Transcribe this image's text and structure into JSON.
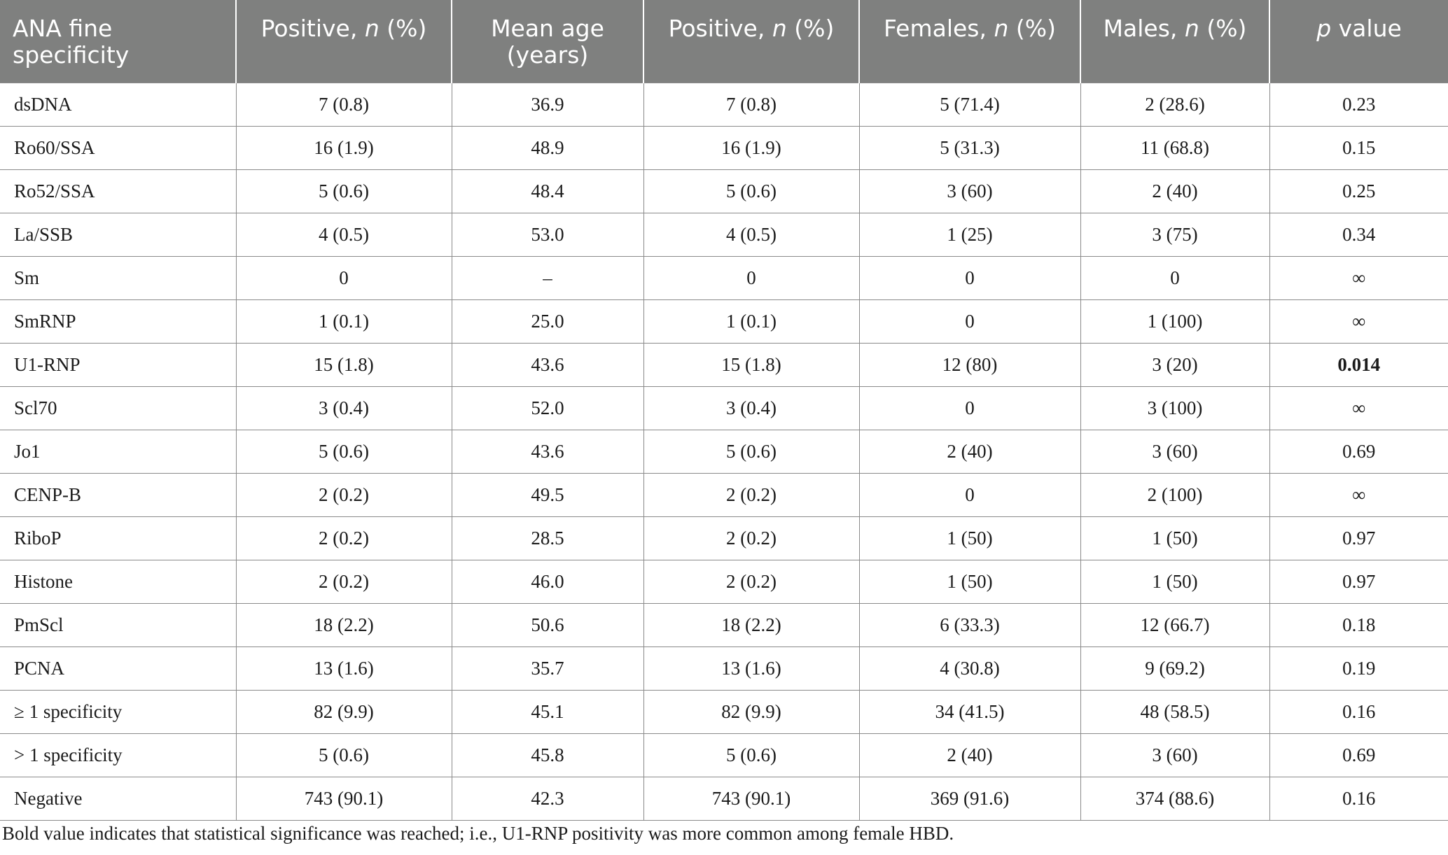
{
  "table": {
    "headers": [
      {
        "pre": "ANA fine specificity",
        "it": "",
        "post": ""
      },
      {
        "pre": "Positive, ",
        "it": "n",
        "post": " (%)"
      },
      {
        "pre": "Mean age (years)",
        "it": "",
        "post": ""
      },
      {
        "pre": "Positive, ",
        "it": "n",
        "post": " (%)"
      },
      {
        "pre": "Females, ",
        "it": "n",
        "post": " (%)"
      },
      {
        "pre": "Males, ",
        "it": "n",
        "post": " (%)"
      },
      {
        "pre": "",
        "it": "p",
        "post": " value"
      }
    ],
    "rows": [
      {
        "spec": "dsDNA",
        "pos1": "7 (0.8)",
        "age": "36.9",
        "pos2": "7 (0.8)",
        "fem": "5 (71.4)",
        "male": "2 (28.6)",
        "p": "0.23",
        "bold": false
      },
      {
        "spec": "Ro60/SSA",
        "pos1": "16 (1.9)",
        "age": "48.9",
        "pos2": "16 (1.9)",
        "fem": "5 (31.3)",
        "male": "11 (68.8)",
        "p": "0.15",
        "bold": false
      },
      {
        "spec": "Ro52/SSA",
        "pos1": "5 (0.6)",
        "age": "48.4",
        "pos2": "5 (0.6)",
        "fem": "3 (60)",
        "male": "2 (40)",
        "p": "0.25",
        "bold": false
      },
      {
        "spec": "La/SSB",
        "pos1": "4 (0.5)",
        "age": "53.0",
        "pos2": "4 (0.5)",
        "fem": "1 (25)",
        "male": "3 (75)",
        "p": "0.34",
        "bold": false
      },
      {
        "spec": "Sm",
        "pos1": "0",
        "age": "–",
        "pos2": "0",
        "fem": "0",
        "male": "0",
        "p": "∞",
        "bold": false
      },
      {
        "spec": "SmRNP",
        "pos1": "1 (0.1)",
        "age": "25.0",
        "pos2": "1 (0.1)",
        "fem": "0",
        "male": "1 (100)",
        "p": "∞",
        "bold": false
      },
      {
        "spec": "U1-RNP",
        "pos1": "15 (1.8)",
        "age": "43.6",
        "pos2": "15 (1.8)",
        "fem": "12 (80)",
        "male": "3 (20)",
        "p": "0.014",
        "bold": true
      },
      {
        "spec": "Scl70",
        "pos1": "3 (0.4)",
        "age": "52.0",
        "pos2": "3 (0.4)",
        "fem": "0",
        "male": "3 (100)",
        "p": "∞",
        "bold": false
      },
      {
        "spec": "Jo1",
        "pos1": "5 (0.6)",
        "age": "43.6",
        "pos2": "5 (0.6)",
        "fem": "2 (40)",
        "male": "3 (60)",
        "p": "0.69",
        "bold": false
      },
      {
        "spec": "CENP-B",
        "pos1": "2 (0.2)",
        "age": "49.5",
        "pos2": "2 (0.2)",
        "fem": "0",
        "male": "2 (100)",
        "p": "∞",
        "bold": false
      },
      {
        "spec": "RiboP",
        "pos1": "2 (0.2)",
        "age": "28.5",
        "pos2": "2 (0.2)",
        "fem": "1 (50)",
        "male": "1 (50)",
        "p": "0.97",
        "bold": false
      },
      {
        "spec": "Histone",
        "pos1": "2 (0.2)",
        "age": "46.0",
        "pos2": "2 (0.2)",
        "fem": "1 (50)",
        "male": "1 (50)",
        "p": "0.97",
        "bold": false
      },
      {
        "spec": "PmScl",
        "pos1": "18 (2.2)",
        "age": "50.6",
        "pos2": "18 (2.2)",
        "fem": "6 (33.3)",
        "male": "12 (66.7)",
        "p": "0.18",
        "bold": false
      },
      {
        "spec": "PCNA",
        "pos1": "13 (1.6)",
        "age": "35.7",
        "pos2": "13 (1.6)",
        "fem": "4 (30.8)",
        "male": "9 (69.2)",
        "p": "0.19",
        "bold": false
      },
      {
        "spec": "≥ 1 specificity",
        "pos1": "82 (9.9)",
        "age": "45.1",
        "pos2": "82 (9.9)",
        "fem": "34 (41.5)",
        "male": "48 (58.5)",
        "p": "0.16",
        "bold": false
      },
      {
        "spec": "> 1 specificity",
        "pos1": "5 (0.6)",
        "age": "45.8",
        "pos2": "5 (0.6)",
        "fem": "2 (40)",
        "male": "3 (60)",
        "p": "0.69",
        "bold": false
      },
      {
        "spec": "Negative",
        "pos1": "743 (90.1)",
        "age": "42.3",
        "pos2": "743 (90.1)",
        "fem": "369 (91.6)",
        "male": "374 (88.6)",
        "p": "0.16",
        "bold": false
      }
    ]
  },
  "footnote": "Bold value indicates that statistical significance was reached; i.e., U1-RNP positivity was more common among female HBD."
}
